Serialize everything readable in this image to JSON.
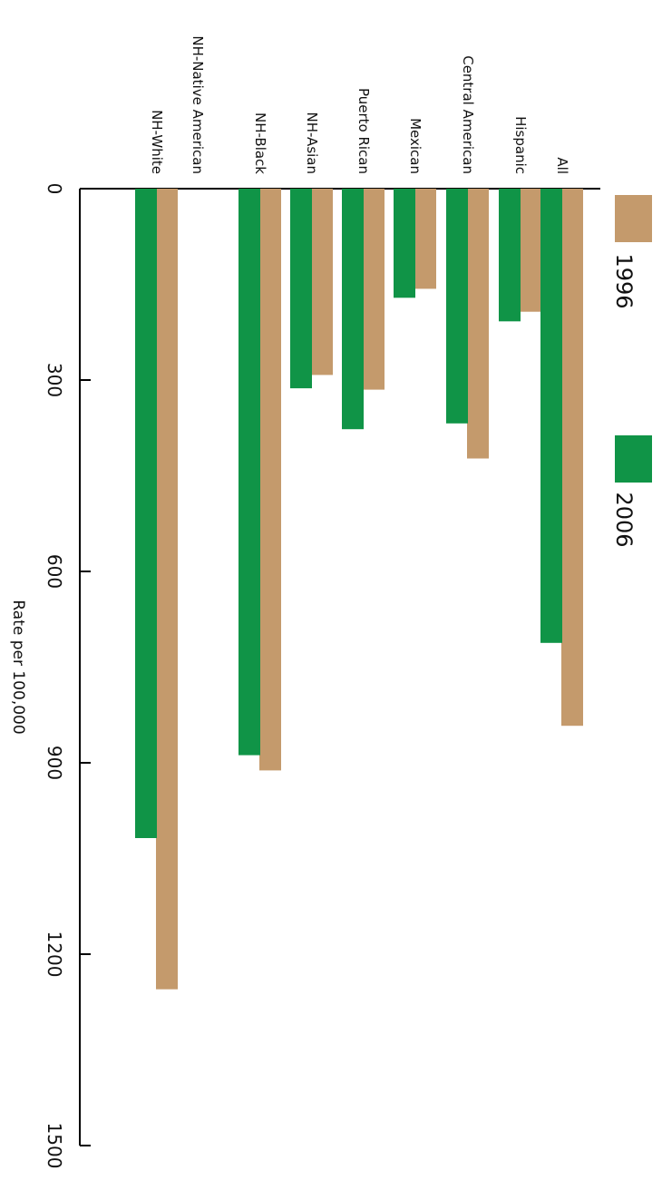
{
  "chart_data": {
    "type": "bar",
    "orientation": "rotated-90-clockwise",
    "categories": [
      "All",
      "Hispanic",
      "Central American",
      "Mexican",
      "Puerto Rican",
      "NH-Asian",
      "NH-Black",
      "NH-Native American",
      "NH-White"
    ],
    "series": [
      {
        "name": "1996",
        "color": "#c49a6c",
        "values": [
          842,
          193,
          423,
          157,
          315,
          292,
          912,
          null,
          1255
        ]
      },
      {
        "name": "2006",
        "color": "#109447",
        "values": [
          712,
          208,
          368,
          171,
          377,
          313,
          888,
          null,
          1018
        ]
      }
    ],
    "ylabel": "Rate per 100,000",
    "ylim": [
      0,
      1500
    ],
    "yticks": [
      "0",
      "300",
      "600",
      "900",
      "1200",
      "1500"
    ],
    "grid": false,
    "legend_placement": "right"
  }
}
